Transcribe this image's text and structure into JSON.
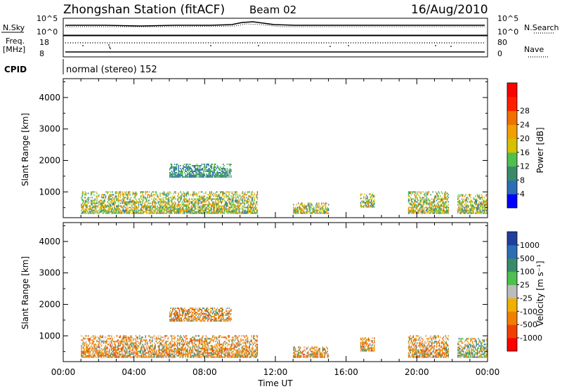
{
  "header": {
    "station": "Zhongshan Station (fitACF)",
    "beam": "Beam 02",
    "date": "16/Aug/2010"
  },
  "top_panels": {
    "noise": {
      "left_label": "N.Sky",
      "right_label": "N.Search",
      "left_ticks": [
        "10^5",
        "10^0"
      ],
      "right_ticks": [
        "10^5",
        "10^0"
      ]
    },
    "freq": {
      "left_label_1": "Freq.",
      "left_label_2": "[MHz]",
      "left_ticks": [
        "18",
        "8"
      ],
      "right_label": "Nave",
      "right_ticks": [
        "80",
        "0"
      ]
    },
    "cpid": {
      "label": "CPID",
      "value": "normal (stereo) 152"
    }
  },
  "chart_data": [
    {
      "type": "heatmap",
      "name": "power",
      "ylabel": "Slant Range [km]",
      "ylim": [
        180,
        4600
      ],
      "yticks": [
        1000,
        2000,
        3000,
        4000
      ],
      "xlim": [
        0,
        24
      ],
      "xticks": [
        "00:00",
        "04:00",
        "08:00",
        "12:00",
        "16:00",
        "20:00",
        "00:00"
      ],
      "colorbar": {
        "label": "Power [dB]",
        "ticks": [
          "4",
          "8",
          "12",
          "16",
          "20",
          "24",
          "28"
        ],
        "colors": [
          "#0000ff",
          "#2c6eb2",
          "#3a8a6a",
          "#4fbf4f",
          "#d6c000",
          "#f0a000",
          "#f07000",
          "#ff2000",
          "#ff0000"
        ]
      },
      "echo_regions": [
        {
          "t0": 1.0,
          "t1": 11.0,
          "r0": 300,
          "r1": 1000,
          "level": "mixed"
        },
        {
          "t0": 6.0,
          "t1": 9.5,
          "r0": 1450,
          "r1": 1900,
          "level": "low"
        },
        {
          "t0": 13.0,
          "t1": 15.0,
          "r0": 300,
          "r1": 650,
          "level": "mixed"
        },
        {
          "t0": 16.8,
          "t1": 17.6,
          "r0": 500,
          "r1": 950,
          "level": "mixed"
        },
        {
          "t0": 19.5,
          "t1": 21.8,
          "r0": 300,
          "r1": 1000,
          "level": "mixed"
        },
        {
          "t0": 22.3,
          "t1": 24.0,
          "r0": 300,
          "r1": 900,
          "level": "mixed"
        }
      ]
    },
    {
      "type": "heatmap",
      "name": "velocity",
      "ylabel": "Slant Range [km]",
      "ylim": [
        180,
        4600
      ],
      "yticks": [
        1000,
        2000,
        3000,
        4000
      ],
      "xlim": [
        0,
        24
      ],
      "xticks": [
        "00:00",
        "04:00",
        "08:00",
        "12:00",
        "16:00",
        "20:00",
        "00:00"
      ],
      "xlabel": "Time UT",
      "colorbar": {
        "label": "Velocity [m s⁻¹]",
        "ticks": [
          "1000",
          "500",
          "100",
          "25",
          "-25",
          "-100",
          "-500",
          "-1000"
        ],
        "colors": [
          "#1f3f9f",
          "#2c6eb2",
          "#3a8a6a",
          "#4fbf4f",
          "#bcbcbc",
          "#f0b000",
          "#f08000",
          "#f04000",
          "#ff0000"
        ]
      },
      "echo_regions": [
        {
          "t0": 1.0,
          "t1": 11.0,
          "r0": 300,
          "r1": 1000,
          "level": "negative"
        },
        {
          "t0": 6.0,
          "t1": 9.5,
          "r0": 1450,
          "r1": 1900,
          "level": "negative"
        },
        {
          "t0": 13.0,
          "t1": 15.0,
          "r0": 300,
          "r1": 650,
          "level": "negative"
        },
        {
          "t0": 16.8,
          "t1": 17.6,
          "r0": 500,
          "r1": 950,
          "level": "negative"
        },
        {
          "t0": 19.5,
          "t1": 21.8,
          "r0": 300,
          "r1": 1000,
          "level": "negative"
        },
        {
          "t0": 22.3,
          "t1": 24.0,
          "r0": 300,
          "r1": 900,
          "level": "mixed"
        }
      ]
    }
  ]
}
